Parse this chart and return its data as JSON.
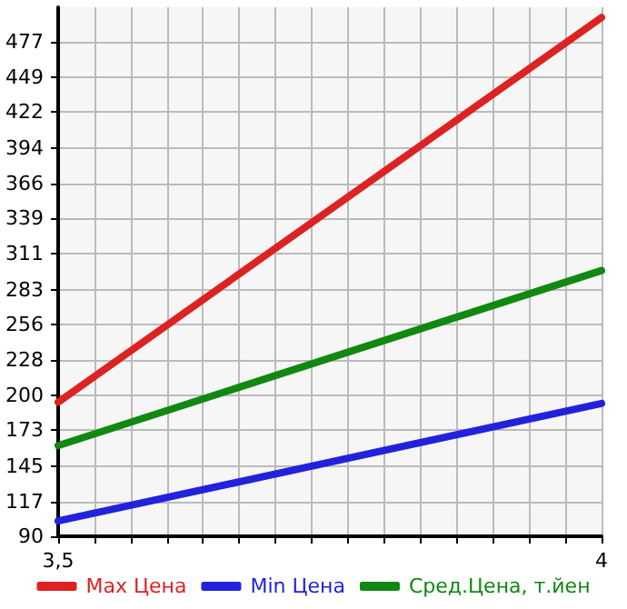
{
  "chart_data": {
    "type": "line",
    "x": [
      3.5,
      4
    ],
    "series": [
      {
        "name": "Max Цена",
        "color": "#dd2222",
        "values": [
          195,
          496
        ]
      },
      {
        "name": "Min Цена",
        "color": "#2222dd",
        "values": [
          102,
          194
        ]
      },
      {
        "name": "Сред.Цена, т.йен",
        "color": "#118811",
        "values": [
          161,
          298
        ]
      }
    ],
    "xlim": [
      3.5,
      4
    ],
    "xticks": [
      {
        "value": 3.5,
        "label": "3,5"
      },
      {
        "value": 3.5333,
        "label": null
      },
      {
        "value": 3.5667,
        "label": null
      },
      {
        "value": 3.6,
        "label": null
      },
      {
        "value": 3.6333,
        "label": null
      },
      {
        "value": 3.6667,
        "label": null
      },
      {
        "value": 3.7,
        "label": null
      },
      {
        "value": 3.7333,
        "label": null
      },
      {
        "value": 3.7667,
        "label": null
      },
      {
        "value": 3.8,
        "label": null
      },
      {
        "value": 3.8333,
        "label": null
      },
      {
        "value": 3.8667,
        "label": null
      },
      {
        "value": 3.9,
        "label": null
      },
      {
        "value": 3.9333,
        "label": null
      },
      {
        "value": 3.9667,
        "label": null
      },
      {
        "value": 4,
        "label": "4"
      }
    ],
    "ylim": [
      90,
      504
    ],
    "yticks": [
      90,
      117,
      145,
      173,
      200,
      228,
      256,
      283,
      311,
      339,
      366,
      394,
      422,
      449,
      477
    ],
    "grid": true,
    "legend": "bottom",
    "marker": "none",
    "line_style": "solid"
  }
}
